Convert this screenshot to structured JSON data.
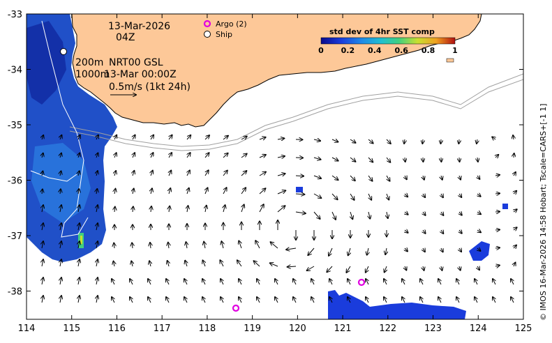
{
  "map": {
    "date": "13-Mar-2026",
    "time": "04Z",
    "depth_line1": "200m",
    "product": "NRT00 GSL",
    "depth_line2": "1000m",
    "analysis_time": "13-Mar 00:00Z",
    "scale_label": "0.5m/s (1kt 24h)",
    "side_credit": "© IMOS 16-Mar-2026 14:58 Hobart; Tscale=CARS+[-1 1]",
    "x_ticks": [
      "114",
      "115",
      "116",
      "117",
      "118",
      "119",
      "120",
      "121",
      "122",
      "123",
      "124",
      "125"
    ],
    "y_ticks": [
      "-33",
      "-34",
      "-35",
      "-36",
      "-37",
      "-38"
    ]
  },
  "legend": {
    "argo": "Argo (2)",
    "ship": "Ship",
    "argo_color": "#e000e0"
  },
  "colorbar": {
    "title": "std dev of 4hr SST comp",
    "ticks": [
      "0",
      "0.2",
      "0.4",
      "0.6",
      "0.8",
      "1"
    ],
    "colors": [
      "#0a0a8c",
      "#1a3cdc",
      "#1e88e8",
      "#20c0d0",
      "#40d080",
      "#c8e030",
      "#f0a020",
      "#b01010"
    ]
  },
  "colors": {
    "land": "#fdc898",
    "coast": "#000000",
    "isobath": "#a0a0a0"
  }
}
